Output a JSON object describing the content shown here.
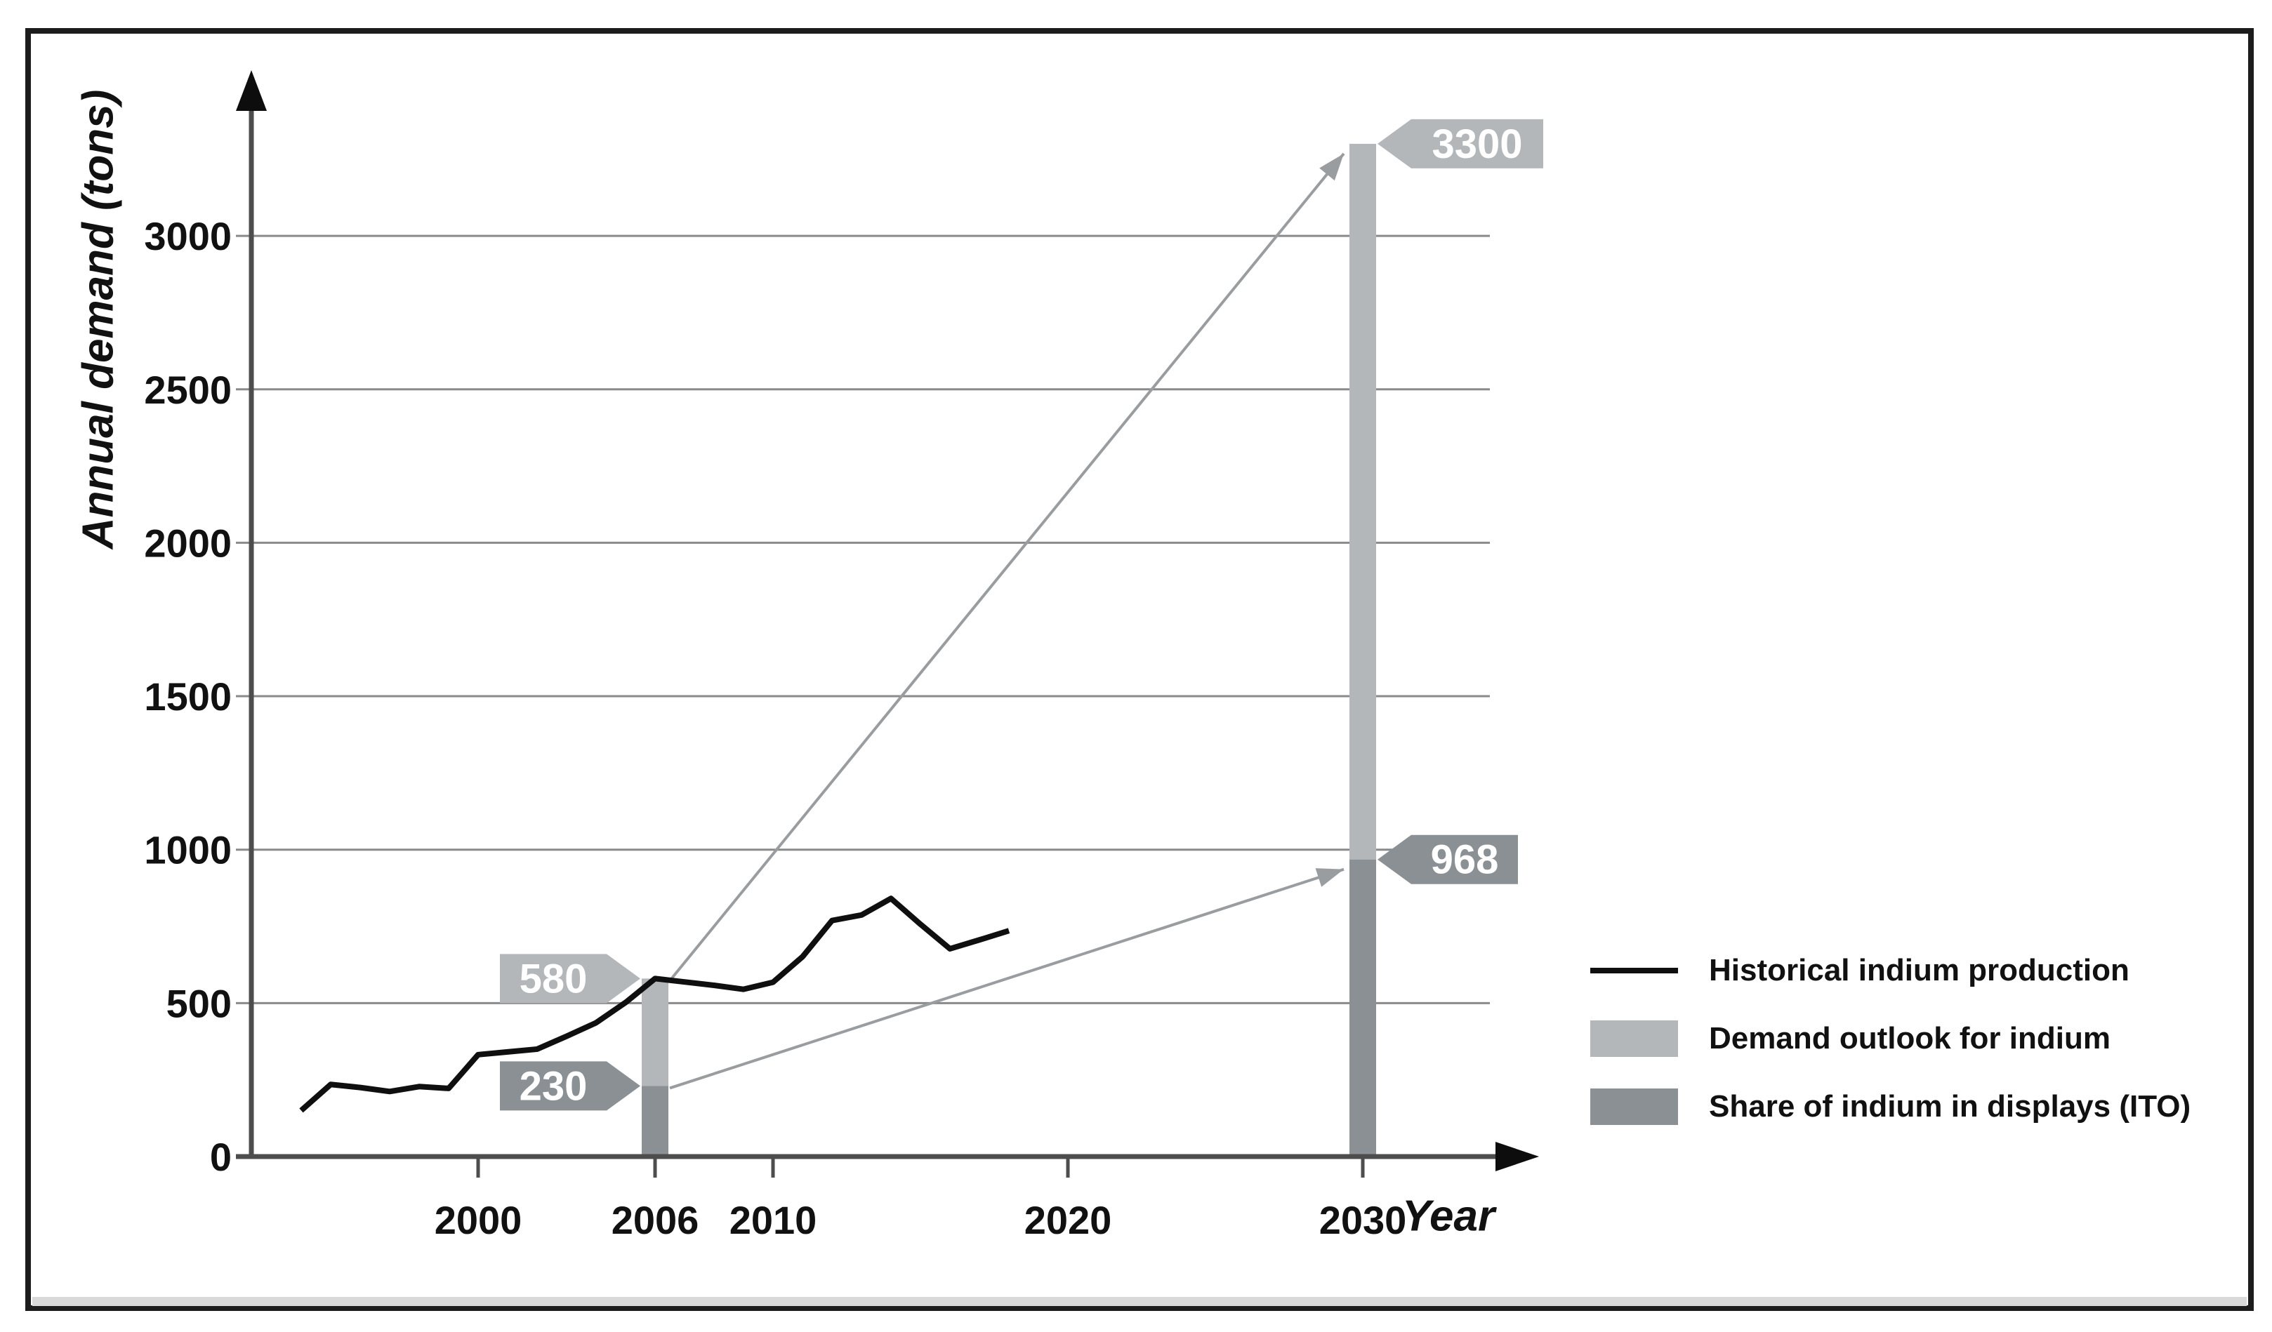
{
  "figure": {
    "background": "#ffffff",
    "border_color": "#1c1c1c",
    "bottom_strip_color": "#d9d9d9"
  },
  "chart_data": {
    "type": "line+bar",
    "xlabel": "Year",
    "ylabel": "Annual demand (tons)",
    "x_ticks": [
      2000,
      2006,
      2010,
      2020,
      2030
    ],
    "y_ticks": [
      0,
      500,
      1000,
      1500,
      2000,
      2500,
      3000
    ],
    "xlim": [
      1992,
      2035.5
    ],
    "ylim": [
      0,
      3450
    ],
    "grid": "horizontal",
    "grid_color": "#8a8a8a",
    "axis_color": "#4d4d4d",
    "series": [
      {
        "name": "Historical indium production",
        "type": "line",
        "color": "#0f0f0f",
        "x": [
          1994,
          1995,
          1996,
          1997,
          1998,
          1999,
          2000,
          2001,
          2002,
          2003,
          2004,
          2005,
          2006,
          2007,
          2008,
          2009,
          2010,
          2011,
          2012,
          2013,
          2014,
          2015,
          2016,
          2017,
          2018
        ],
        "y": [
          150,
          235,
          225,
          212,
          228,
          222,
          332,
          341,
          350,
          392,
          436,
          502,
          580,
          569,
          558,
          545,
          568,
          651,
          769,
          787,
          841,
          757,
          677,
          706,
          736
        ]
      },
      {
        "name": "Demand outlook for indium",
        "type": "bar",
        "color": "#b4b7b9",
        "points": [
          {
            "year": 2006,
            "value": 580
          },
          {
            "year": 2030,
            "value": 3300
          }
        ]
      },
      {
        "name": "Share of indium in displays (ITO)",
        "type": "bar",
        "color": "#8b9094",
        "points": [
          {
            "year": 2006,
            "value": 230
          },
          {
            "year": 2030,
            "value": 968
          }
        ]
      }
    ],
    "bars": [
      {
        "year": 2006,
        "demand": 580,
        "ito": 230
      },
      {
        "year": 2030,
        "demand": 3300,
        "ito": 968
      }
    ],
    "annotations": {
      "badges": [
        {
          "label": "580",
          "year": 2006,
          "value": 580,
          "side": "left",
          "color": "#b4b7b9"
        },
        {
          "label": "230",
          "year": 2006,
          "value": 230,
          "side": "left",
          "color": "#8b9094"
        },
        {
          "label": "3300",
          "year": 2030,
          "value": 3300,
          "side": "right",
          "color": "#b4b7b9"
        },
        {
          "label": "968",
          "year": 2030,
          "value": 968,
          "side": "right",
          "color": "#8b9094"
        }
      ],
      "arrows": [
        {
          "from": {
            "year": 2006,
            "value": 580
          },
          "to": {
            "year": 2030,
            "value": 3300
          },
          "color": "#9a9da0"
        },
        {
          "from": {
            "year": 2006,
            "value": 230
          },
          "to": {
            "year": 2030,
            "value": 968
          },
          "color": "#9a9da0"
        }
      ]
    },
    "legend": {
      "position": "bottom-right",
      "items": [
        {
          "label": "Historical indium production",
          "swatch": "line",
          "color": "#0f0f0f"
        },
        {
          "label": "Demand outlook for indium",
          "swatch": "rect",
          "color": "#b4b7b9"
        },
        {
          "label": "Share of indium in displays (ITO)",
          "swatch": "rect",
          "color": "#8b9094"
        }
      ]
    }
  }
}
